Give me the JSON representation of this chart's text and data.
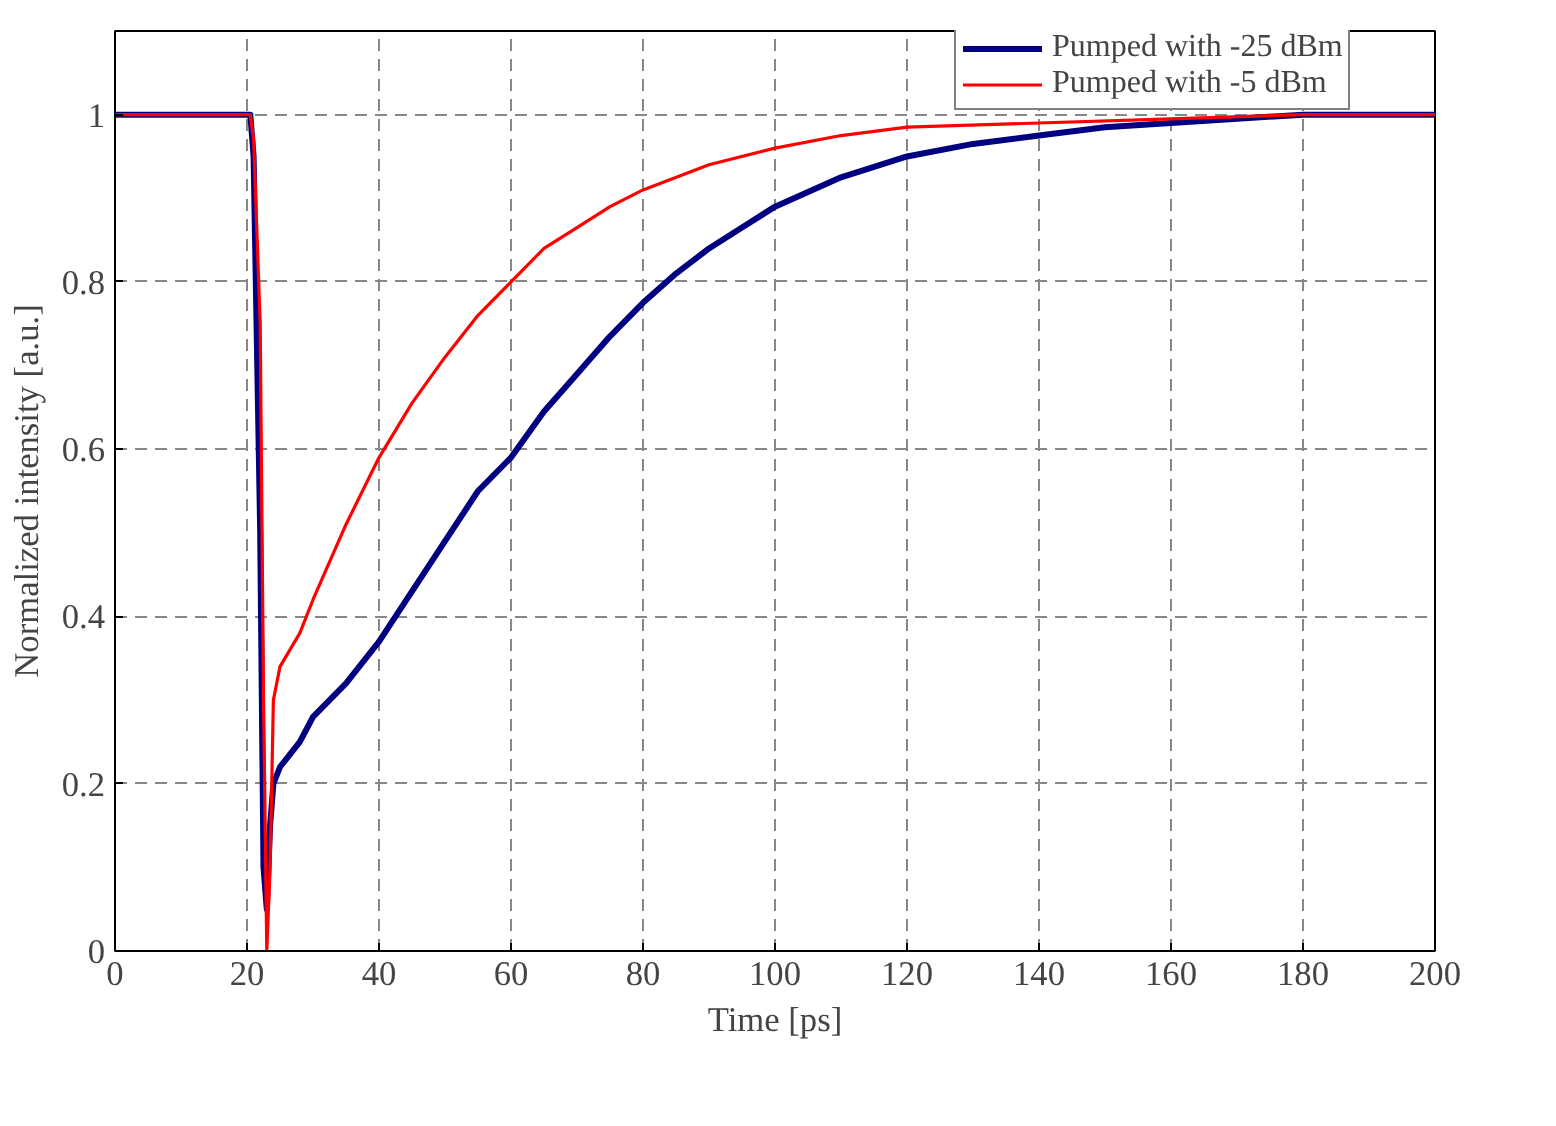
{
  "chart_data": {
    "type": "line",
    "xlabel": "Time [ps]",
    "ylabel": "Normalized intensity [a.u.]",
    "xlim": [
      0,
      200
    ],
    "ylim": [
      0,
      1.1
    ],
    "xticks": [
      0,
      20,
      40,
      60,
      80,
      100,
      120,
      140,
      160,
      180,
      200
    ],
    "yticks": [
      0,
      0.2,
      0.4,
      0.6,
      0.8,
      1
    ],
    "grid": true,
    "legend": "top right",
    "line_style": "solid",
    "marker": "none",
    "series": [
      {
        "name": "Pumped with -25 dBm",
        "color": "#000080",
        "x": [
          0,
          20.5,
          21,
          22,
          22.5,
          23,
          23.5,
          24,
          25,
          28,
          30,
          35,
          40,
          45,
          50,
          55,
          60,
          65,
          70,
          75,
          80,
          85,
          90,
          95,
          100,
          110,
          120,
          130,
          140,
          150,
          160,
          170,
          180,
          200
        ],
        "values": [
          1,
          1,
          0.95,
          0.5,
          0.1,
          0.05,
          0.15,
          0.2,
          0.22,
          0.25,
          0.28,
          0.32,
          0.37,
          0.43,
          0.49,
          0.55,
          0.59,
          0.645,
          0.69,
          0.735,
          0.775,
          0.81,
          0.84,
          0.865,
          0.89,
          0.925,
          0.95,
          0.965,
          0.975,
          0.985,
          0.99,
          0.995,
          1,
          1
        ]
      },
      {
        "name": "Pumped with -5 dBm",
        "color": "#ff0000",
        "x": [
          0,
          20.5,
          21,
          22,
          22.5,
          23,
          23.5,
          24,
          25,
          28,
          30,
          35,
          40,
          45,
          50,
          55,
          60,
          65,
          70,
          75,
          80,
          90,
          100,
          110,
          120,
          140,
          160,
          180,
          200
        ],
        "values": [
          1,
          1,
          0.97,
          0.75,
          0.3,
          0,
          0.1,
          0.3,
          0.34,
          0.38,
          0.42,
          0.51,
          0.59,
          0.655,
          0.71,
          0.76,
          0.8,
          0.84,
          0.865,
          0.89,
          0.91,
          0.94,
          0.96,
          0.975,
          0.985,
          0.99,
          0.995,
          1,
          1
        ]
      }
    ]
  }
}
